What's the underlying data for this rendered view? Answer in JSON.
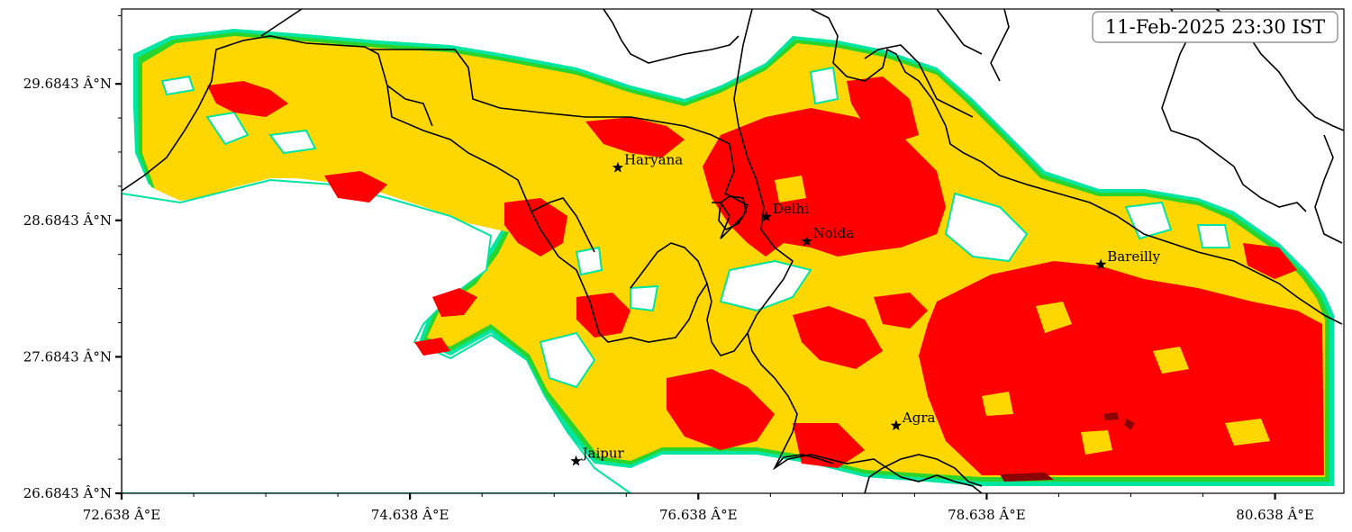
{
  "map": {
    "timestamp": "11-Feb-2025 23:30 IST",
    "x_ticks": [
      "72.638 Â°E",
      "74.638 Â°E",
      "76.638 Â°E",
      "78.638 Â°E",
      "80.638 Â°E"
    ],
    "y_ticks": [
      "29.6843 Â°N",
      "28.6843 Â°N",
      "27.6843 Â°N",
      "26.6843 Â°N"
    ],
    "cities": [
      {
        "name": "Haryana",
        "lon": 76.08,
        "lat": 29.07
      },
      {
        "name": "Delhi",
        "lon": 77.11,
        "lat": 28.71
      },
      {
        "name": "Noida",
        "lon": 77.39,
        "lat": 28.53
      },
      {
        "name": "Bareilly",
        "lon": 79.43,
        "lat": 28.36
      },
      {
        "name": "Agra",
        "lon": 78.01,
        "lat": 27.18
      },
      {
        "name": "Jaipur",
        "lon": 75.79,
        "lat": 26.92
      }
    ],
    "colors": {
      "band_low": "#00e5a0",
      "band_mid": "#2bd42b",
      "band_moderate": "#ffd700",
      "band_high": "#ff0000",
      "band_very_high": "#8b0000",
      "border": "#000000"
    }
  }
}
